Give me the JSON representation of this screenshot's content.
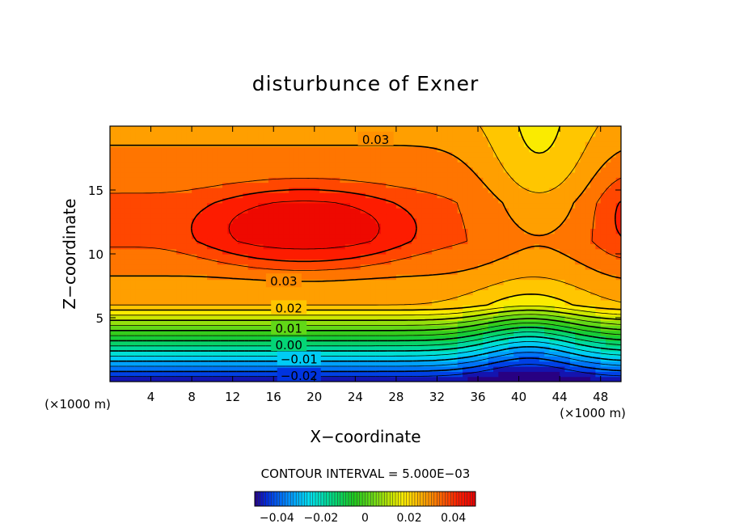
{
  "chart_data": {
    "type": "heatmap",
    "title": "disturbunce of Exner",
    "xlabel": "X−coordinate",
    "ylabel": "Z−coordinate",
    "x_unit_left": "(×1000 m)",
    "x_unit_right": "(×1000 m)",
    "xlim": [
      0,
      50
    ],
    "ylim": [
      0,
      20
    ],
    "x_ticks": [
      4,
      8,
      12,
      16,
      20,
      24,
      28,
      32,
      36,
      40,
      44,
      48
    ],
    "x_tick_labels": [
      "4",
      "8",
      "12",
      "16",
      "20",
      "24",
      "28",
      "32",
      "36",
      "40",
      "44",
      "48"
    ],
    "y_ticks": [
      5,
      10,
      15
    ],
    "y_tick_labels": [
      "5",
      "10",
      "15"
    ],
    "contour_interval_text": "CONTOUR INTERVAL = 5.000E−03",
    "contour_labels": [
      {
        "text": "0.03",
        "x": 26,
        "y": 19.0
      },
      {
        "text": "0.03",
        "x": 17,
        "y": 7.9
      },
      {
        "text": "0.02",
        "x": 17.5,
        "y": 5.8
      },
      {
        "text": "0.01",
        "x": 17.5,
        "y": 4.2
      },
      {
        "text": "0.00",
        "x": 17.5,
        "y": 2.9
      },
      {
        "text": "−0.01",
        "x": 18.5,
        "y": 1.8
      },
      {
        "text": "−0.02",
        "x": 18.5,
        "y": 0.5
      }
    ],
    "colorbar": {
      "range": [
        -0.05,
        0.05
      ],
      "tick_values": [
        -0.04,
        -0.02,
        0,
        0.02,
        0.04
      ],
      "tick_labels": [
        "−0.04",
        "−0.02",
        "0",
        "0.02",
        "0.04"
      ]
    },
    "field_summary": {
      "min": -0.05,
      "max": 0.045,
      "max_region_center": [
        19,
        12
      ],
      "secondary_max_center": [
        50,
        12
      ],
      "min_region_center": [
        42,
        0
      ]
    }
  }
}
